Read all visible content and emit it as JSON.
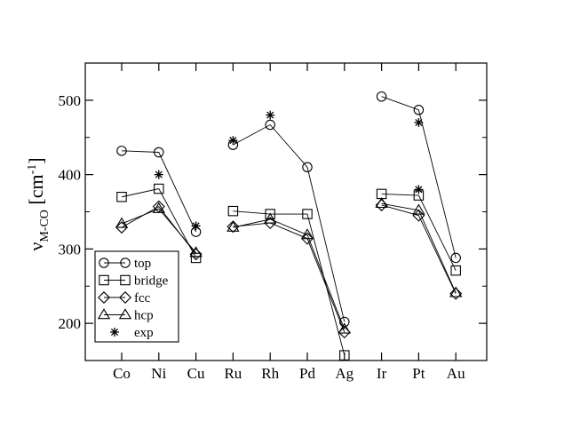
{
  "chart_data": {
    "type": "line",
    "categories": [
      "Co",
      "Ni",
      "Cu",
      "Ru",
      "Rh",
      "Pd",
      "Ag",
      "Ir",
      "Pt",
      "Au"
    ],
    "groups": [
      [
        0,
        1,
        2
      ],
      [
        3,
        4,
        5,
        6
      ],
      [
        7,
        8,
        9
      ]
    ],
    "ylabel_main": "ν",
    "ylabel_sub": "M-CO",
    "ylabel_unit": " [cm",
    "ylabel_sup": "-1",
    "ylabel_close": "]",
    "ylim": [
      150,
      550
    ],
    "yticks": [
      200,
      300,
      400,
      500
    ],
    "series": [
      {
        "name": "top",
        "marker": "circle",
        "values": [
          432,
          430,
          323,
          440,
          467,
          410,
          202,
          505,
          487,
          288
        ]
      },
      {
        "name": "bridge",
        "marker": "square",
        "values": [
          370,
          381,
          288,
          351,
          347,
          347,
          157,
          374,
          372,
          271
        ]
      },
      {
        "name": "fcc",
        "marker": "diamond",
        "values": [
          329,
          357,
          293,
          330,
          335,
          314,
          188,
          359,
          345,
          240
        ]
      },
      {
        "name": "hcp",
        "marker": "triangle",
        "values": [
          334,
          354,
          295,
          329,
          340,
          319,
          192,
          361,
          352,
          241
        ]
      },
      {
        "name": "exp",
        "marker": "star",
        "values": [
          null,
          400,
          331,
          446,
          480,
          null,
          null,
          null,
          470,
          null
        ],
        "extra": [
          {
            "x": 8,
            "y": 380
          }
        ]
      }
    ],
    "legend_position": "bottom-left"
  }
}
